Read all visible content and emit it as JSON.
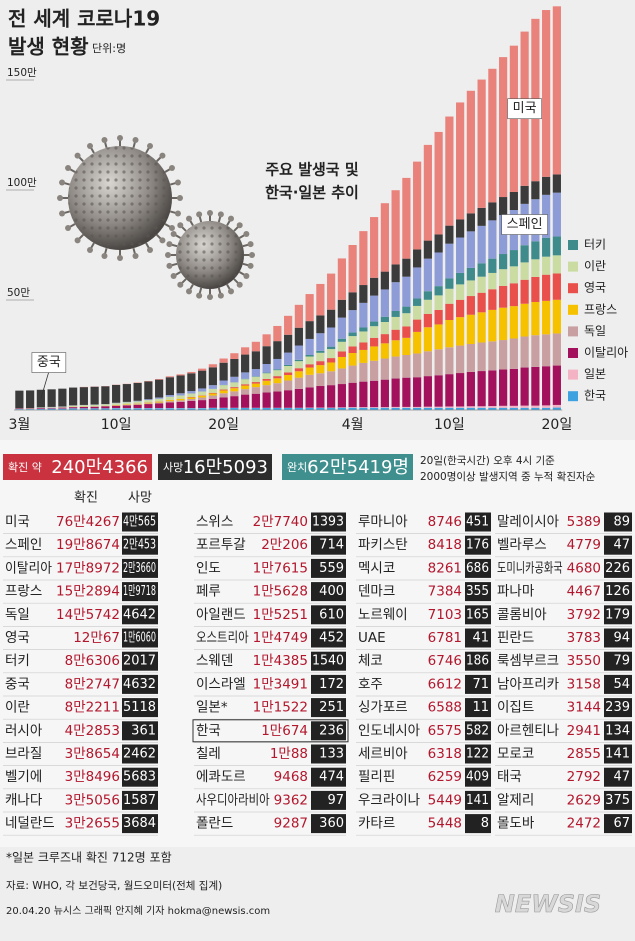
{
  "chart_data": {
    "type": "stacked_bar",
    "title": "전 세계 코로나19",
    "subtitle": "발생 현황",
    "unit": "단위:명",
    "annotation": [
      "주요 발생국 및",
      "한국·일본 추이"
    ],
    "categories": [
      "3월",
      null,
      null,
      null,
      null,
      null,
      null,
      null,
      null,
      "10일",
      null,
      null,
      null,
      null,
      null,
      null,
      null,
      null,
      null,
      "20일",
      null,
      null,
      null,
      null,
      null,
      null,
      null,
      null,
      null,
      null,
      null,
      "4월",
      null,
      null,
      null,
      null,
      null,
      null,
      null,
      null,
      "10일",
      null,
      null,
      null,
      null,
      null,
      null,
      null,
      null,
      null,
      "20일"
    ],
    "ylim": [
      0,
      185
    ],
    "yticks": [
      {
        "value": 50,
        "label": "50만"
      },
      {
        "value": 100,
        "label": "100만"
      },
      {
        "value": 150,
        "label": "150만"
      }
    ],
    "grid": true,
    "legend": "right",
    "series": [
      {
        "name": "한국",
        "color": "#3fa2e0",
        "legend": true,
        "values": [
          0.4,
          0.4,
          0.5,
          0.6,
          0.6,
          0.7,
          0.7,
          0.7,
          0.7,
          0.8,
          0.8,
          0.8,
          0.8,
          0.8,
          0.8,
          0.8,
          0.8,
          0.8,
          0.9,
          0.9,
          0.9,
          0.9,
          0.9,
          0.9,
          0.9,
          0.9,
          0.9,
          0.9,
          0.9,
          0.9,
          1.0,
          1.0,
          1.0,
          1.0,
          1.0,
          1.0,
          1.0,
          1.0,
          1.0,
          1.0,
          1.0,
          1.0,
          1.0,
          1.0,
          1.0,
          1.0,
          1.0,
          1.0,
          1.0,
          1.0,
          1.1
        ]
      },
      {
        "name": "일본",
        "color": "#f3b3c4",
        "legend": true,
        "values": [
          0.1,
          0.1,
          0.1,
          0.1,
          0.1,
          0.1,
          0.1,
          0.1,
          0.1,
          0.1,
          0.1,
          0.1,
          0.1,
          0.1,
          0.1,
          0.1,
          0.1,
          0.1,
          0.1,
          0.1,
          0.1,
          0.1,
          0.1,
          0.1,
          0.1,
          0.1,
          0.1,
          0.2,
          0.2,
          0.2,
          0.2,
          0.3,
          0.3,
          0.3,
          0.3,
          0.4,
          0.4,
          0.4,
          0.5,
          0.5,
          0.6,
          0.6,
          0.7,
          0.7,
          0.8,
          0.9,
          0.9,
          1.0,
          1.0,
          1.1,
          1.2
        ]
      },
      {
        "name": "이탈리아",
        "color": "#a3115c",
        "legend": true,
        "values": [
          0.2,
          0.2,
          0.3,
          0.3,
          0.4,
          0.5,
          0.6,
          0.7,
          0.9,
          1.0,
          1.2,
          1.5,
          1.8,
          2.1,
          2.5,
          2.8,
          3.2,
          3.6,
          4.1,
          4.7,
          5.3,
          6.0,
          6.4,
          7.0,
          7.4,
          8.0,
          8.6,
          9.2,
          9.8,
          10.2,
          10.6,
          11.1,
          11.6,
          12.0,
          12.5,
          12.9,
          13.3,
          13.5,
          13.9,
          14.3,
          14.7,
          15.2,
          15.6,
          16.0,
          16.2,
          16.5,
          16.8,
          17.3,
          17.6,
          17.8,
          17.9
        ]
      },
      {
        "name": "독일",
        "color": "#c9a0a2",
        "legend": true,
        "values": [
          0,
          0,
          0,
          0,
          0,
          0.1,
          0.1,
          0.1,
          0.1,
          0.1,
          0.2,
          0.2,
          0.3,
          0.4,
          0.6,
          0.7,
          0.9,
          1.2,
          1.5,
          1.9,
          2.2,
          2.5,
          3.0,
          3.3,
          3.8,
          4.4,
          5.1,
          5.7,
          5.8,
          6.3,
          7.1,
          7.8,
          8.5,
          9.1,
          9.6,
          10.0,
          10.3,
          10.8,
          11.3,
          11.8,
          12.2,
          12.5,
          12.7,
          13.0,
          13.2,
          13.4,
          13.8,
          14.1,
          14.4,
          14.5,
          14.6
        ]
      },
      {
        "name": "프랑스",
        "color": "#f6c200",
        "legend": true,
        "values": [
          0,
          0,
          0,
          0,
          0,
          0.1,
          0.1,
          0.1,
          0.1,
          0.2,
          0.2,
          0.2,
          0.3,
          0.4,
          0.5,
          0.6,
          0.7,
          0.8,
          0.9,
          1.3,
          1.4,
          1.6,
          1.6,
          2.0,
          2.2,
          2.5,
          2.9,
          3.3,
          3.7,
          4.0,
          5.2,
          5.7,
          5.9,
          6.5,
          6.9,
          7.4,
          7.8,
          9.8,
          10.9,
          11.3,
          12.4,
          12.9,
          13.3,
          13.7,
          14.3,
          14.7,
          14.7,
          14.9,
          15.1,
          15.2,
          15.3
        ]
      },
      {
        "name": "영국",
        "color": "#e9504b",
        "legend": true,
        "values": [
          0,
          0,
          0,
          0,
          0,
          0,
          0,
          0,
          0,
          0.1,
          0.1,
          0.1,
          0.1,
          0.1,
          0.1,
          0.1,
          0.2,
          0.2,
          0.3,
          0.4,
          0.5,
          0.6,
          0.7,
          0.8,
          1.0,
          1.2,
          1.4,
          1.5,
          1.8,
          2.0,
          2.5,
          3.0,
          3.4,
          3.9,
          4.2,
          4.8,
          5.2,
          5.6,
          6.1,
          6.6,
          7.4,
          7.9,
          8.5,
          8.9,
          9.4,
          9.9,
          10.4,
          10.9,
          11.4,
          11.9,
          12.0
        ]
      },
      {
        "name": "이란",
        "color": "#cadca2",
        "legend": true,
        "values": [
          0.1,
          0.2,
          0.2,
          0.3,
          0.4,
          0.5,
          0.6,
          0.7,
          0.7,
          0.8,
          0.9,
          1.0,
          1.1,
          1.2,
          1.4,
          1.5,
          1.6,
          1.7,
          1.8,
          2.0,
          2.1,
          2.3,
          2.4,
          2.6,
          2.7,
          2.9,
          3.2,
          3.5,
          3.8,
          4.1,
          4.4,
          4.7,
          5.0,
          5.3,
          5.5,
          5.8,
          6.0,
          6.2,
          6.4,
          6.6,
          6.8,
          7.0,
          7.1,
          7.3,
          7.4,
          7.6,
          7.7,
          7.9,
          8.0,
          8.2,
          8.2
        ]
      },
      {
        "name": "터키",
        "color": "#3f8b8b",
        "legend": true,
        "values": [
          0,
          0,
          0,
          0,
          0,
          0,
          0,
          0,
          0,
          0,
          0,
          0,
          0,
          0,
          0,
          0,
          0,
          0,
          0,
          0.1,
          0.1,
          0.2,
          0.2,
          0.3,
          0.4,
          0.5,
          0.6,
          0.7,
          0.9,
          1.1,
          1.4,
          1.6,
          1.8,
          2.1,
          2.4,
          2.7,
          3.0,
          3.4,
          3.9,
          4.2,
          4.7,
          5.2,
          5.7,
          6.1,
          6.5,
          6.9,
          7.4,
          7.8,
          8.2,
          8.6,
          8.6
        ]
      },
      {
        "name": "스페인",
        "color": "#8d9cd7",
        "legend": false,
        "values": [
          0,
          0,
          0.1,
          0.1,
          0.1,
          0.1,
          0.1,
          0.1,
          0.1,
          0.2,
          0.2,
          0.3,
          0.4,
          0.6,
          0.8,
          1.0,
          1.1,
          1.4,
          1.7,
          2.0,
          2.5,
          2.9,
          3.3,
          3.9,
          4.7,
          5.6,
          6.5,
          7.3,
          8.0,
          8.7,
          9.6,
          10.2,
          11.2,
          11.8,
          12.4,
          13.1,
          13.6,
          14.1,
          14.8,
          15.3,
          15.8,
          16.1,
          16.6,
          17.0,
          17.4,
          17.7,
          18.2,
          18.8,
          19.1,
          19.5,
          19.9
        ]
      },
      {
        "name": "중국",
        "color": "#3b3b3b",
        "legend": false,
        "values": [
          8.0,
          8.0,
          8.0,
          8.0,
          8.1,
          8.1,
          8.1,
          8.1,
          8.1,
          8.1,
          8.1,
          8.1,
          8.1,
          8.1,
          8.1,
          8.1,
          8.1,
          8.1,
          8.1,
          8.1,
          8.1,
          8.1,
          8.1,
          8.1,
          8.1,
          8.1,
          8.1,
          8.1,
          8.1,
          8.1,
          8.1,
          8.1,
          8.1,
          8.1,
          8.1,
          8.1,
          8.2,
          8.2,
          8.2,
          8.2,
          8.2,
          8.2,
          8.2,
          8.2,
          8.2,
          8.2,
          8.2,
          8.2,
          8.2,
          8.2,
          8.3
        ]
      },
      {
        "name": "미국",
        "color": "#ea827c",
        "legend": false,
        "values": [
          0,
          0,
          0,
          0,
          0,
          0,
          0.1,
          0.1,
          0.1,
          0.1,
          0.1,
          0.2,
          0.2,
          0.3,
          0.4,
          0.5,
          0.6,
          0.9,
          1.4,
          1.9,
          2.6,
          3.3,
          4.3,
          5.4,
          6.9,
          8.6,
          10.4,
          12.3,
          14.3,
          16.4,
          18.8,
          21.5,
          24.5,
          27.6,
          31.1,
          33.7,
          36.7,
          39.9,
          43.5,
          46.6,
          49.6,
          53.2,
          55.7,
          58.3,
          60.7,
          63.6,
          66.5,
          70.1,
          73.8,
          75.8,
          76.4
        ]
      }
    ]
  },
  "summary": {
    "confirmed": {
      "label": "확진 약",
      "value": "240만4366"
    },
    "deaths": {
      "label": "사망",
      "value": "16만5093"
    },
    "recovered": {
      "label": "완치",
      "value": "62만5419명"
    },
    "notes": [
      "20일(한국시간) 오후 4시 기준",
      "2000명이상 발생지역 중 누적 확진자순"
    ]
  },
  "table": {
    "headers": [
      "확진",
      "사망"
    ],
    "groups": [
      [
        [
          "미국",
          "76만4267",
          "4만565"
        ],
        [
          "스페인",
          "19만8674",
          "2만453"
        ],
        [
          "이탈리아",
          "17만8972",
          "2만3660"
        ],
        [
          "프랑스",
          "15만2894",
          "1만9718"
        ],
        [
          "독일",
          "14만5742",
          "4642"
        ],
        [
          "영국",
          "12만67",
          "1만6060"
        ],
        [
          "터키",
          "8만6306",
          "2017"
        ],
        [
          "중국",
          "8만2747",
          "4632"
        ],
        [
          "이란",
          "8만2211",
          "5118"
        ],
        [
          "러시아",
          "4만2853",
          "361"
        ],
        [
          "브라질",
          "3만8654",
          "2462"
        ],
        [
          "벨기에",
          "3만8496",
          "5683"
        ],
        [
          "캐나다",
          "3만5056",
          "1587"
        ],
        [
          "네덜란드",
          "3만2655",
          "3684"
        ]
      ],
      [
        [
          "스위스",
          "2만7740",
          "1393"
        ],
        [
          "포르투갈",
          "2만206",
          "714"
        ],
        [
          "인도",
          "1만7615",
          "559"
        ],
        [
          "페루",
          "1만5628",
          "400"
        ],
        [
          "아일랜드",
          "1만5251",
          "610"
        ],
        [
          "오스트리아",
          "1만4749",
          "452"
        ],
        [
          "스웨덴",
          "1만4385",
          "1540"
        ],
        [
          "이스라엘",
          "1만3491",
          "172"
        ],
        [
          "일본*",
          "1만1522",
          "251"
        ],
        [
          "한국",
          "1만674",
          "236"
        ],
        [
          "칠레",
          "1만88",
          "133"
        ],
        [
          "에콰도르",
          "9468",
          "474"
        ],
        [
          "사우디아라비아",
          "9362",
          "97"
        ],
        [
          "폴란드",
          "9287",
          "360"
        ]
      ],
      [
        [
          "루마니아",
          "8746",
          "451"
        ],
        [
          "파키스탄",
          "8418",
          "176"
        ],
        [
          "멕시코",
          "8261",
          "686"
        ],
        [
          "덴마크",
          "7384",
          "355"
        ],
        [
          "노르웨이",
          "7103",
          "165"
        ],
        [
          "UAE",
          "6781",
          "41"
        ],
        [
          "체코",
          "6746",
          "186"
        ],
        [
          "호주",
          "6612",
          "71"
        ],
        [
          "싱가포르",
          "6588",
          "11"
        ],
        [
          "인도네시아",
          "6575",
          "582"
        ],
        [
          "세르비아",
          "6318",
          "122"
        ],
        [
          "필리핀",
          "6259",
          "409"
        ],
        [
          "우크라이나",
          "5449",
          "141"
        ],
        [
          "카타르",
          "5448",
          "8"
        ]
      ],
      [
        [
          "말레이시아",
          "5389",
          "89"
        ],
        [
          "벨라루스",
          "4779",
          "47"
        ],
        [
          "도미니카공화국",
          "4680",
          "226"
        ],
        [
          "파나마",
          "4467",
          "126"
        ],
        [
          "콜롬비아",
          "3792",
          "179"
        ],
        [
          "핀란드",
          "3783",
          "94"
        ],
        [
          "룩셈부르크",
          "3550",
          "79"
        ],
        [
          "남아프리카",
          "3158",
          "54"
        ],
        [
          "이집트",
          "3144",
          "239"
        ],
        [
          "아르헨티나",
          "2941",
          "134"
        ],
        [
          "모로코",
          "2855",
          "141"
        ],
        [
          "태국",
          "2792",
          "47"
        ],
        [
          "알제리",
          "2629",
          "375"
        ],
        [
          "몰도바",
          "2472",
          "67"
        ]
      ]
    ]
  },
  "footer": {
    "note": "*일본 크루즈내 확진 712명 포함",
    "source": "자료: WHO, 각 보건당국, 월드오미터(전체 집계)",
    "credit": "20.04.20 뉴시스 그래픽 안지혜 기자 hokma@newsis.com",
    "logo": "NEWSIS"
  }
}
